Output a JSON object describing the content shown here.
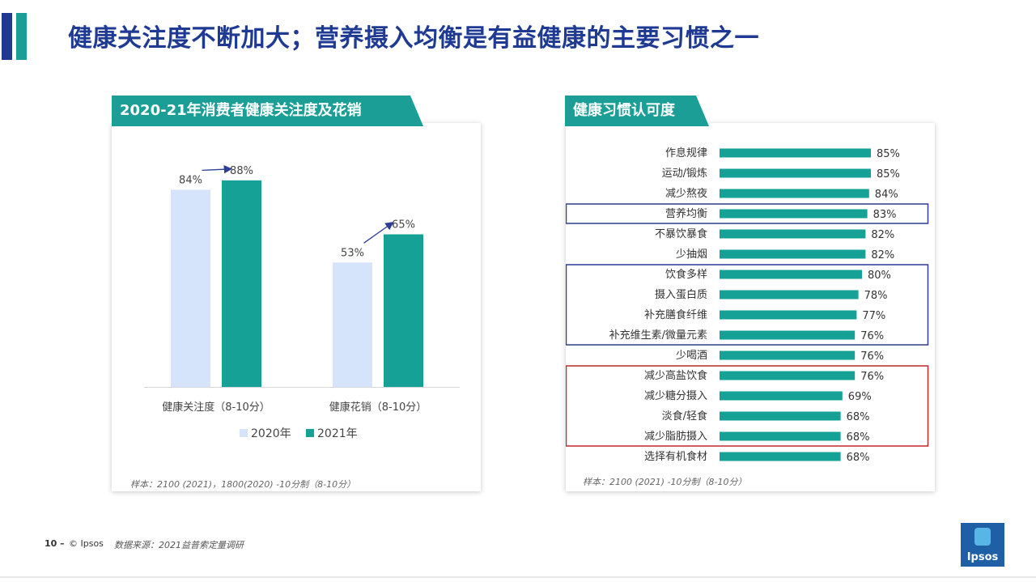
{
  "header": {
    "title": "健康关注度不断加大；营养摄入均衡是有益健康的主要习惯之一",
    "accent_colors": [
      "#1f3a93",
      "#1a9e96"
    ]
  },
  "left_panel": {
    "tag": "2020-21年消费者健康关注度及花销",
    "footnote": "样本：2100 (2021)，1800(2020) -10分制（8-10分）"
  },
  "right_panel": {
    "tag": "健康习惯认可度",
    "footnote": "样本：2100 (2021) -10分制（8-10分）"
  },
  "footer": {
    "page_number": "10 –",
    "brand": "© Ipsos",
    "source": "数据来源：2021益普索定量调研",
    "logo_text": "Ipsos"
  },
  "chart_data": [
    {
      "type": "bar",
      "title": "2020-21年消费者健康关注度及花销",
      "categories": [
        "健康关注度（8-10分）",
        "健康花销（8-10分）"
      ],
      "series": [
        {
          "name": "2020年",
          "values": [
            84,
            53
          ],
          "labels": [
            "84%",
            "53%"
          ],
          "color": "#d6e4fb"
        },
        {
          "name": "2021年",
          "values": [
            88,
            65
          ],
          "labels": [
            "88%",
            "65%"
          ],
          "color": "#16a197"
        }
      ],
      "ylim": [
        0,
        100
      ],
      "grid": false,
      "legend": "bottom",
      "annotations": [
        "arrow from 2020 to 2021 above each group"
      ]
    },
    {
      "type": "bar",
      "orientation": "horizontal",
      "title": "健康习惯认可度",
      "categories": [
        "作息规律",
        "运动/锻炼",
        "减少熬夜",
        "营养均衡",
        "不暴饮暴食",
        "少抽烟",
        "饮食多样",
        "摄入蛋白质",
        "补充膳食纤维",
        "补充维生素/微量元素",
        "少喝酒",
        "减少高盐饮食",
        "减少糖分摄入",
        "淡食/轻食",
        "减少脂肪摄入",
        "选择有机食材"
      ],
      "values": [
        85,
        85,
        84,
        83,
        82,
        82,
        80,
        78,
        77,
        76,
        76,
        76,
        69,
        68,
        68,
        68
      ],
      "labels": [
        "85%",
        "85%",
        "84%",
        "83%",
        "82%",
        "82%",
        "80%",
        "78%",
        "77%",
        "76%",
        "76%",
        "76%",
        "69%",
        "68%",
        "68%",
        "68%"
      ],
      "color": "#16a197",
      "xlim": [
        0,
        100
      ],
      "grid": false,
      "highlight_groups": [
        {
          "items": [
            "营养均衡"
          ],
          "color": "#2e3d96"
        },
        {
          "items": [
            "饮食多样",
            "摄入蛋白质",
            "补充膳食纤维",
            "补充维生素/微量元素"
          ],
          "color": "#2e3d96"
        },
        {
          "items": [
            "减少高盐饮食",
            "减少糖分摄入",
            "淡食/轻食",
            "减少脂肪摄入"
          ],
          "color": "#c0292b"
        }
      ]
    }
  ]
}
